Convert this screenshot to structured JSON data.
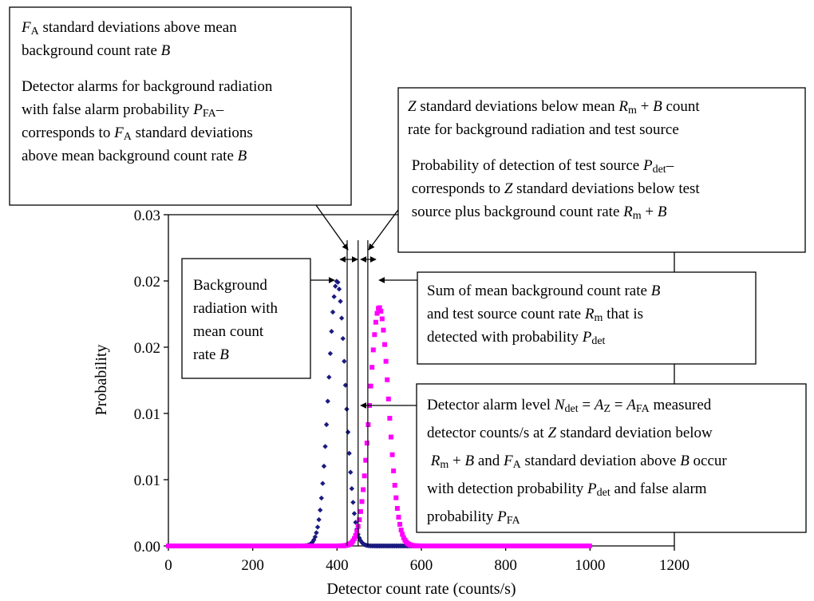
{
  "chart_data": {
    "type": "scatter",
    "title": "",
    "xlabel": "Detector count rate (counts/s)",
    "ylabel": "Probability",
    "xlim": [
      0,
      1200
    ],
    "ylim": [
      0,
      0.025
    ],
    "x_ticks": [
      0,
      200,
      400,
      600,
      800,
      1000,
      1200
    ],
    "x_tick_labels": [
      "0",
      "200",
      "400",
      "600",
      "800",
      "1000",
      "1200"
    ],
    "y_ticks": [
      0,
      0.005,
      0.01,
      0.015,
      0.02,
      0.025
    ],
    "y_tick_labels": [
      "0.00",
      "0.01",
      "0.01",
      "0.02",
      "0.02",
      "0.03"
    ],
    "grid": false,
    "legend": "none",
    "series": [
      {
        "color": "#1a1a80",
        "marker": "diamond",
        "distribution": "gaussian",
        "mean": 400,
        "std_dev": 20,
        "x_range": [
          0,
          1000
        ],
        "x_step": 3,
        "peak_probability": 0.02
      },
      {
        "color": "#ff00ff",
        "marker": "square",
        "distribution": "gaussian",
        "mean": 500,
        "std_dev": 22.36,
        "x_range": [
          0,
          1000
        ],
        "x_step": 3,
        "peak_probability": 0.018
      }
    ],
    "vertical_lines": [
      {
        "x": 424
      },
      {
        "x": 450
      },
      {
        "x": 473
      }
    ]
  },
  "annotations": {
    "fa_box": [
      [
        {
          "t": "F",
          "i": true
        },
        {
          "t": "A",
          "sub": true
        },
        {
          "t": " standard deviations above mean"
        }
      ],
      [
        {
          "t": "background count rate "
        },
        {
          "t": "B",
          "i": true
        }
      ],
      [],
      [
        {
          "t": "Detector alarms for background radiation"
        }
      ],
      [
        {
          "t": "with false alarm probability "
        },
        {
          "t": "P",
          "i": true
        },
        {
          "t": "FA",
          "sub": true
        },
        {
          "t": "–"
        }
      ],
      [
        {
          "t": "corresponds to "
        },
        {
          "t": "F",
          "i": true
        },
        {
          "t": "A",
          "sub": true
        },
        {
          "t": " standard deviations"
        }
      ],
      [
        {
          "t": "above mean background count rate "
        },
        {
          "t": "B",
          "i": true
        }
      ]
    ],
    "z_box": [
      [
        {
          "t": "Z",
          "i": true
        },
        {
          "t": " standard deviations below mean "
        },
        {
          "t": "R",
          "i": true
        },
        {
          "t": "m",
          "sub": true
        },
        {
          "t": " + "
        },
        {
          "t": "B",
          "i": true
        },
        {
          "t": " count"
        }
      ],
      [
        {
          "t": "rate for background radiation and test source"
        }
      ],
      [],
      [
        {
          "t": " Probability of detection of test source "
        },
        {
          "t": "P",
          "i": true
        },
        {
          "t": "det",
          "sub": true
        },
        {
          "t": "–"
        }
      ],
      [
        {
          "t": " corresponds to "
        },
        {
          "t": "Z",
          "i": true
        },
        {
          "t": " standard deviations below test"
        }
      ],
      [
        {
          "t": " source plus background count rate "
        },
        {
          "t": "R",
          "i": true
        },
        {
          "t": "m",
          "sub": true
        },
        {
          "t": " + "
        },
        {
          "t": "B",
          "i": true
        }
      ]
    ],
    "bg_box": [
      [
        {
          "t": "Background"
        }
      ],
      [
        {
          "t": "radiation with"
        }
      ],
      [
        {
          "t": "mean count"
        }
      ],
      [
        {
          "t": "rate "
        },
        {
          "t": "B",
          "i": true
        }
      ]
    ],
    "sum_box": [
      [
        {
          "t": "Sum of mean background count rate "
        },
        {
          "t": "B",
          "i": true
        }
      ],
      [
        {
          "t": "and test source count rate "
        },
        {
          "t": "R",
          "i": true
        },
        {
          "t": "m",
          "sub": true
        },
        {
          "t": " that is"
        }
      ],
      [
        {
          "t": "detected with probability "
        },
        {
          "t": "P",
          "i": true
        },
        {
          "t": "det",
          "sub": true
        }
      ]
    ],
    "alarm_box": [
      [
        {
          "t": "Detector alarm level "
        },
        {
          "t": "N",
          "i": true
        },
        {
          "t": "det",
          "sub": true
        },
        {
          "t": " = "
        },
        {
          "t": "A",
          "i": true
        },
        {
          "t": "Z",
          "sub": true
        },
        {
          "t": " = "
        },
        {
          "t": "A",
          "i": true
        },
        {
          "t": "FA",
          "sub": true
        },
        {
          "t": " measured"
        }
      ],
      [
        {
          "t": "detector counts/s at "
        },
        {
          "t": "Z",
          "i": true
        },
        {
          "t": " standard deviation below"
        }
      ],
      [
        {
          "t": " "
        },
        {
          "t": "R",
          "i": true
        },
        {
          "t": "m",
          "sub": true
        },
        {
          "t": " + "
        },
        {
          "t": "B",
          "i": true
        },
        {
          "t": " and "
        },
        {
          "t": "F",
          "i": true
        },
        {
          "t": "A",
          "sub": true
        },
        {
          "t": " standard deviation above "
        },
        {
          "t": "B",
          "i": true
        },
        {
          "t": " occur"
        }
      ],
      [
        {
          "t": "with detection probability "
        },
        {
          "t": "P",
          "i": true
        },
        {
          "t": "det",
          "sub": true
        },
        {
          "t": " and false alarm"
        }
      ],
      [
        {
          "t": "probability "
        },
        {
          "t": "P",
          "i": true
        },
        {
          "t": "FA",
          "sub": true
        }
      ]
    ]
  }
}
